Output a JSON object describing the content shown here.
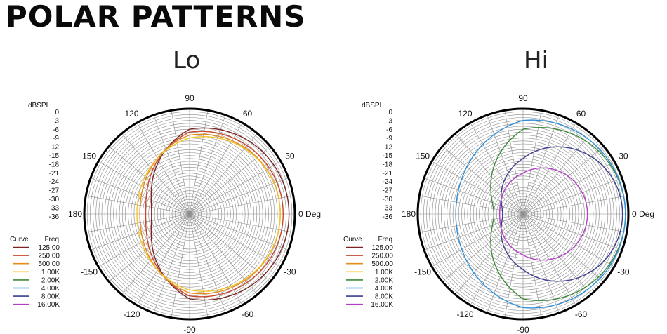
{
  "page_title": "POLAR PATTERNS",
  "colors": {
    "125.00": "#7b2424",
    "250.00": "#c8452a",
    "500.00": "#e58a1c",
    "1.00K": "#f3c52b",
    "2.00K": "#3f8a3a",
    "4.00K": "#2e8fd8",
    "8.00K": "#3d3d8f",
    "16.00K": "#b23fc4"
  },
  "chart_data": [
    {
      "type": "polar",
      "title": "Lo",
      "scale_label": "dBSPL",
      "scale_ticks": [
        "0",
        "-3",
        "-6",
        "-9",
        "-12",
        "-15",
        "-18",
        "-21",
        "-24",
        "-27",
        "-30",
        "-33",
        "-36"
      ],
      "rlim_db": [
        -36,
        0
      ],
      "angle_labels": [
        "90",
        "60",
        "30",
        "0 Deg",
        "-30",
        "-60",
        "-90",
        "-120",
        "-150",
        "180",
        "150",
        "120"
      ],
      "legend": {
        "header_curve": "Curve",
        "header_freq": "Freq",
        "entries": [
          "125.00",
          "250.00",
          "500.00",
          "1.00K",
          "2.00K",
          "4.00K",
          "8.00K",
          "16.00K"
        ]
      },
      "series": [
        {
          "name": "125.00",
          "color": "#7b2424",
          "db_front": -2,
          "db_90": -7,
          "db_back": -23
        },
        {
          "name": "250.00",
          "color": "#c8452a",
          "db_front": -4,
          "db_90": -8,
          "db_back": -21
        },
        {
          "name": "500.00",
          "color": "#e58a1c",
          "db_front": -5,
          "db_90": -9,
          "db_back": -19
        },
        {
          "name": "1.00K",
          "color": "#f3c52b",
          "db_front": -5,
          "db_90": -10,
          "db_back": -18
        }
      ]
    },
    {
      "type": "polar",
      "title": "Hi",
      "scale_label": "dBSPL",
      "scale_ticks": [
        "0",
        "-3",
        "-6",
        "-9",
        "-12",
        "-15",
        "-18",
        "-21",
        "-24",
        "-27",
        "-30",
        "-33",
        "-36"
      ],
      "rlim_db": [
        -36,
        0
      ],
      "angle_labels": [
        "90",
        "60",
        "30",
        "0 Deg",
        "-30",
        "-60",
        "-90",
        "-120",
        "-150",
        "180",
        "150",
        "120"
      ],
      "legend": {
        "header_curve": "Curve",
        "header_freq": "Freq",
        "entries": [
          "125.00",
          "250.00",
          "500.00",
          "1.00K",
          "2.00K",
          "4.00K",
          "8.00K",
          "16.00K"
        ]
      },
      "series": [
        {
          "name": "2.00K",
          "color": "#3f8a3a",
          "db_front": -1,
          "db_90": -7,
          "db_back": -26
        },
        {
          "name": "4.00K",
          "color": "#2e8fd8",
          "db_front": -1,
          "db_90": -4,
          "db_back": -13
        },
        {
          "name": "8.00K",
          "color": "#3d3d8f",
          "db_front": -2,
          "db_90": -17,
          "db_back": -29
        },
        {
          "name": "16.00K",
          "color": "#b23fc4",
          "db_front": -14,
          "db_90": -22,
          "db_back": -28
        }
      ]
    }
  ]
}
